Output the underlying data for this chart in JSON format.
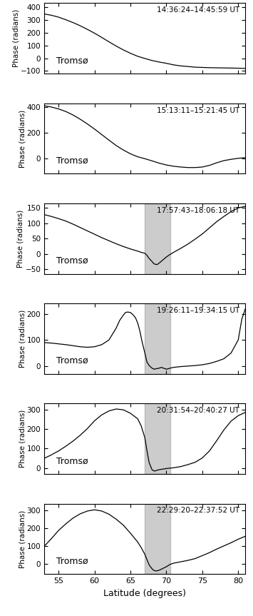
{
  "xlim": [
    53,
    81
  ],
  "xlabel": "Latitude (degrees)",
  "ylabel": "Phase (radians)",
  "label_tromsoe": "Tromsø",
  "shaded_region": [
    67.0,
    70.5
  ],
  "panels": [
    {
      "time_label": "14:36:24–14:45:59 UT",
      "ylim": [
        -120,
        430
      ],
      "yticks": [
        -100,
        0,
        100,
        200,
        300,
        400
      ],
      "has_shade": false,
      "curve": {
        "x": [
          53,
          54,
          55,
          56,
          57,
          58,
          59,
          60,
          61,
          62,
          63,
          64,
          65,
          66,
          67,
          68,
          69,
          70,
          71,
          72,
          73,
          74,
          75,
          76,
          77,
          78,
          79,
          80,
          81
        ],
        "y": [
          345,
          335,
          320,
          300,
          278,
          253,
          225,
          195,
          162,
          128,
          95,
          65,
          38,
          15,
          -2,
          -18,
          -30,
          -40,
          -52,
          -60,
          -65,
          -70,
          -72,
          -74,
          -75,
          -76,
          -77,
          -78,
          -80
        ]
      }
    },
    {
      "time_label": "15:13:11–15:21:45 UT",
      "ylim": [
        -120,
        430
      ],
      "yticks": [
        0,
        200,
        400
      ],
      "has_shade": false,
      "curve": {
        "x": [
          53,
          54,
          55,
          56,
          57,
          58,
          59,
          60,
          61,
          62,
          63,
          64,
          65,
          66,
          67,
          68,
          69,
          70,
          71,
          72,
          73,
          74,
          75,
          76,
          77,
          78,
          79,
          80,
          81
        ],
        "y": [
          410,
          400,
          385,
          365,
          338,
          305,
          268,
          228,
          185,
          142,
          100,
          65,
          35,
          12,
          -3,
          -20,
          -38,
          -52,
          -62,
          -68,
          -72,
          -72,
          -68,
          -55,
          -35,
          -18,
          -8,
          0,
          5
        ]
      }
    },
    {
      "time_label": "17:57:43–18:06:18 UT",
      "ylim": [
        -65,
        165
      ],
      "yticks": [
        -50,
        0,
        50,
        100,
        150
      ],
      "has_shade": true,
      "curve": {
        "x": [
          53,
          54,
          55,
          56,
          57,
          58,
          59,
          60,
          61,
          62,
          63,
          64,
          65,
          66,
          66.5,
          67,
          67.3,
          67.6,
          68,
          68.3,
          68.7,
          69,
          69.5,
          70,
          70.5,
          71,
          72,
          73,
          74,
          75,
          76,
          77,
          78,
          79,
          80,
          81
        ],
        "y": [
          128,
          122,
          115,
          107,
          97,
          86,
          75,
          64,
          53,
          43,
          33,
          24,
          16,
          9,
          5,
          2,
          -5,
          -15,
          -25,
          -33,
          -35,
          -30,
          -20,
          -10,
          -2,
          5,
          18,
          32,
          48,
          65,
          85,
          105,
          122,
          138,
          150,
          155
        ]
      }
    },
    {
      "time_label": "19:26:11–19:34:15 UT",
      "ylim": [
        -30,
        240
      ],
      "yticks": [
        0,
        100,
        200
      ],
      "has_shade": true,
      "curve": {
        "x": [
          53,
          54,
          55,
          56,
          57,
          58,
          59,
          60,
          61,
          62,
          63,
          63.5,
          64,
          64.3,
          64.6,
          65,
          65.3,
          65.7,
          66,
          66.3,
          66.6,
          67,
          67.3,
          67.6,
          68,
          68.3,
          68.6,
          69,
          69.3,
          69.6,
          70,
          70.3,
          70.5,
          71,
          72,
          73,
          74,
          75,
          76,
          77,
          78,
          79,
          80,
          80.5,
          81
        ],
        "y": [
          90,
          88,
          85,
          82,
          78,
          74,
          72,
          74,
          82,
          100,
          145,
          175,
          195,
          205,
          207,
          205,
          198,
          185,
          165,
          135,
          95,
          50,
          15,
          2,
          -8,
          -12,
          -10,
          -8,
          -5,
          -8,
          -12,
          -10,
          -8,
          -5,
          -2,
          0,
          2,
          5,
          10,
          18,
          28,
          50,
          100,
          180,
          220
        ]
      }
    },
    {
      "time_label": "20:31:54–20:40:27 UT",
      "ylim": [
        -30,
        330
      ],
      "yticks": [
        0,
        100,
        200,
        300
      ],
      "has_shade": true,
      "curve": {
        "x": [
          53,
          54,
          55,
          56,
          57,
          58,
          59,
          60,
          61,
          62,
          63,
          64,
          65,
          66,
          66.5,
          67,
          67.3,
          67.6,
          68,
          68.3,
          68.6,
          69,
          69.5,
          70,
          70.5,
          71,
          72,
          73,
          74,
          75,
          76,
          77,
          78,
          79,
          80,
          81
        ],
        "y": [
          50,
          68,
          88,
          112,
          138,
          168,
          202,
          242,
          272,
          292,
          302,
          298,
          280,
          252,
          215,
          155,
          88,
          28,
          -8,
          -15,
          -12,
          -8,
          -5,
          -2,
          0,
          2,
          8,
          18,
          30,
          52,
          88,
          140,
          195,
          240,
          268,
          285
        ]
      }
    },
    {
      "time_label": "22:29:20–22:37:52 UT",
      "ylim": [
        -60,
        340
      ],
      "yticks": [
        0,
        100,
        200,
        300
      ],
      "has_shade": true,
      "curve": {
        "x": [
          53,
          54,
          55,
          56,
          57,
          58,
          59,
          60,
          61,
          62,
          63,
          64,
          65,
          66,
          66.5,
          67,
          67.3,
          67.6,
          68,
          68.3,
          68.6,
          69,
          69.5,
          70,
          70.5,
          71,
          72,
          73,
          74,
          75,
          76,
          77,
          78,
          79,
          80,
          81
        ],
        "y": [
          98,
          142,
          188,
          225,
          258,
          282,
          298,
          305,
          298,
          280,
          252,
          218,
          172,
          122,
          90,
          52,
          22,
          -8,
          -30,
          -40,
          -42,
          -38,
          -28,
          -18,
          -5,
          2,
          10,
          18,
          28,
          45,
          62,
          82,
          100,
          118,
          138,
          155
        ]
      }
    }
  ]
}
